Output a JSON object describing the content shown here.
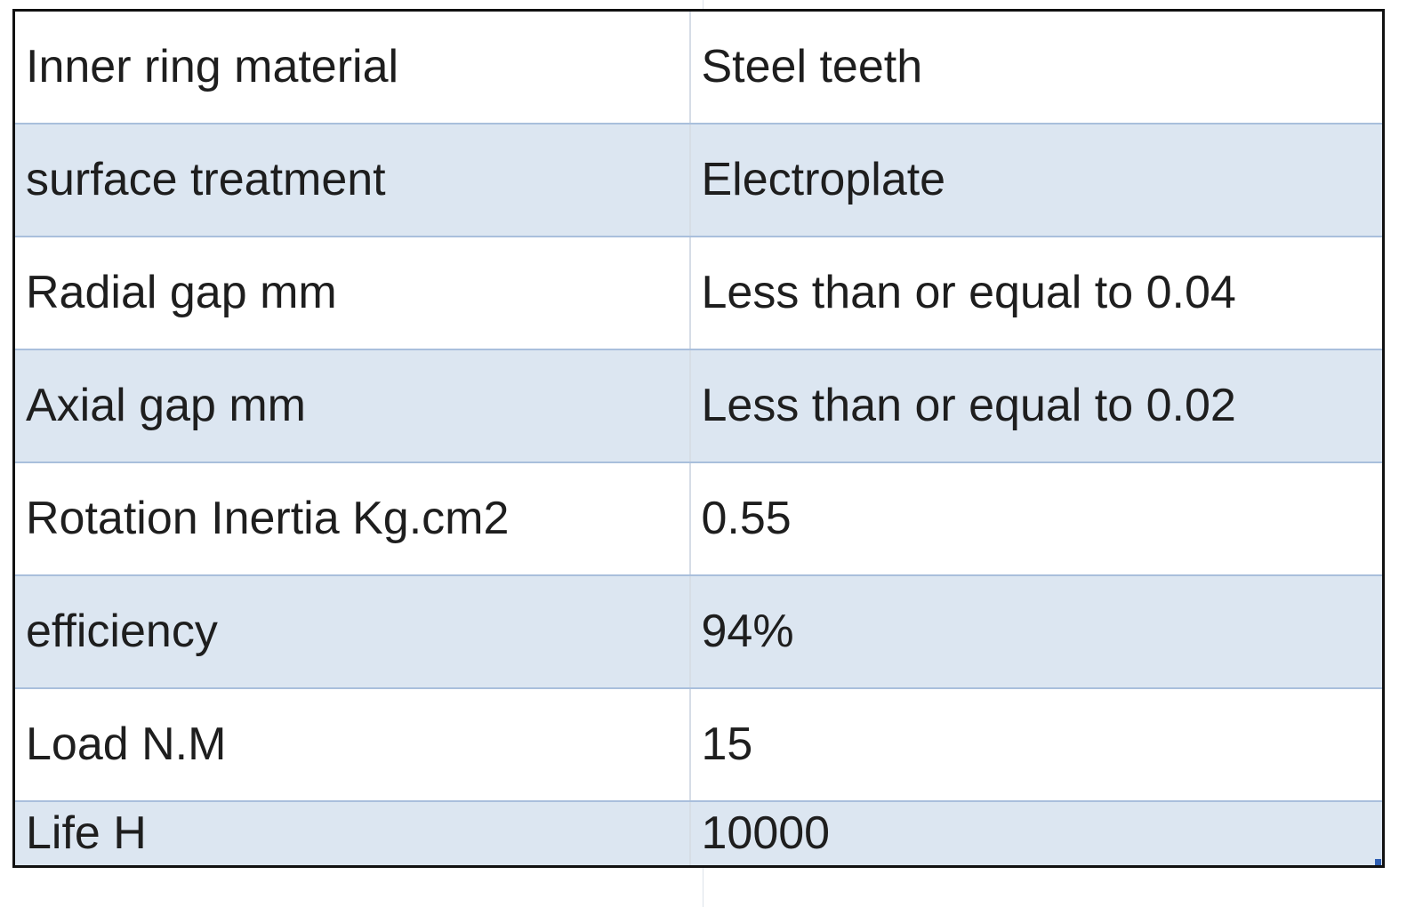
{
  "spec_table": {
    "rows": [
      {
        "label": "Inner ring material",
        "value": "Steel teeth"
      },
      {
        "label": "surface treatment",
        "value": "Electroplate"
      },
      {
        "label": "Radial gap mm",
        "value": "Less than or equal to 0.04"
      },
      {
        "label": "Axial gap mm",
        "value": "Less than or equal to 0.02"
      },
      {
        "label": "Rotation Inertia Kg.cm2",
        "value": "0.55"
      },
      {
        "label": "efficiency",
        "value": "94%"
      },
      {
        "label": "Load N.M",
        "value": "15"
      },
      {
        "label": "Life H",
        "value": "10000"
      }
    ]
  },
  "colors": {
    "band_fill": "#dce6f1",
    "row_border": "#a9bfdc",
    "outer_border": "#111111",
    "selection_handle": "#2f5fb3"
  }
}
